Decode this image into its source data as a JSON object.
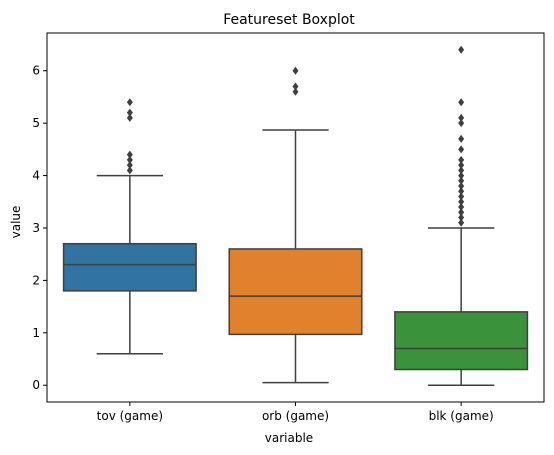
{
  "chart_data": {
    "type": "box",
    "title": "Featureset Boxplot",
    "xlabel": "variable",
    "ylabel": "value",
    "ylim": [
      -0.32,
      6.72
    ],
    "yticks": [
      0,
      1,
      2,
      3,
      4,
      5,
      6
    ],
    "categories": [
      "tov (game)",
      "orb (game)",
      "blk (game)"
    ],
    "colors": [
      "#3274a1",
      "#e1812c",
      "#3a923a"
    ],
    "boxes": [
      {
        "category": "tov (game)",
        "whisker_low": 0.6,
        "q1": 1.8,
        "median": 2.3,
        "q3": 2.7,
        "whisker_high": 4.0,
        "outliers": [
          4.1,
          4.2,
          4.3,
          4.4,
          5.1,
          5.2,
          5.4
        ]
      },
      {
        "category": "orb (game)",
        "whisker_low": 0.05,
        "q1": 0.97,
        "median": 1.7,
        "q3": 2.6,
        "whisker_high": 4.87,
        "outliers": [
          5.6,
          5.7,
          6.0
        ]
      },
      {
        "category": "blk (game)",
        "whisker_low": 0.0,
        "q1": 0.3,
        "median": 0.7,
        "q3": 1.4,
        "whisker_high": 3.0,
        "outliers": [
          3.1,
          3.2,
          3.3,
          3.4,
          3.5,
          3.6,
          3.7,
          3.8,
          3.9,
          4.0,
          4.1,
          4.2,
          4.3,
          4.5,
          4.7,
          5.0,
          5.1,
          5.4,
          6.4
        ]
      }
    ]
  }
}
